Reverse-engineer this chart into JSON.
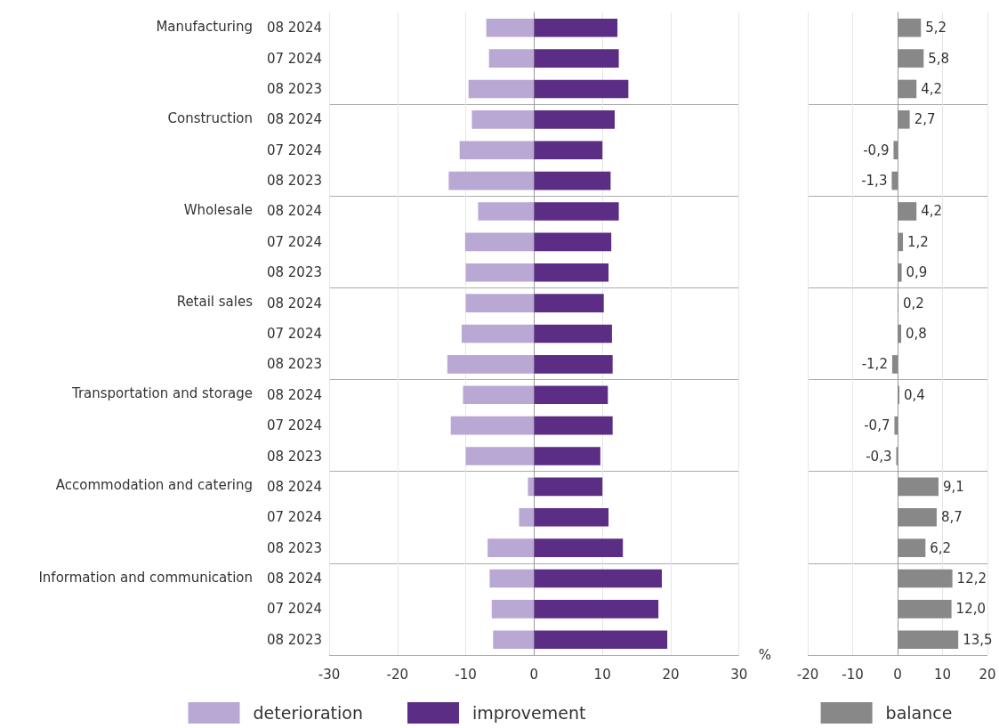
{
  "chart_data": [
    {
      "type": "bar",
      "orientation": "horizontal",
      "stacked": true,
      "categories": [
        "08 2024",
        "07 2024",
        "08 2023",
        "08 2024",
        "07 2024",
        "08 2023",
        "08 2024",
        "07 2024",
        "08 2023",
        "08 2024",
        "07 2024",
        "08 2023",
        "08 2024",
        "07 2024",
        "08 2023",
        "08 2024",
        "07 2024",
        "08 2023",
        "08 2024",
        "07 2024",
        "08 2023"
      ],
      "series": [
        {
          "name": "deterioration",
          "color": "#b9a8d4",
          "values": [
            -7.0,
            -6.6,
            -9.6,
            -9.1,
            -10.9,
            -12.5,
            -8.2,
            -10.1,
            -10.0,
            -10.0,
            -10.6,
            -12.7,
            -10.4,
            -12.2,
            -10.0,
            -0.9,
            -2.2,
            -6.8,
            -6.5,
            -6.2,
            -6.0
          ]
        },
        {
          "name": "improvement",
          "color": "#5b2d84",
          "values": [
            12.2,
            12.4,
            13.8,
            11.8,
            10.0,
            11.2,
            12.4,
            11.3,
            10.9,
            10.2,
            11.4,
            11.5,
            10.8,
            11.5,
            9.7,
            10.0,
            10.9,
            13.0,
            18.7,
            18.2,
            19.5
          ]
        }
      ],
      "annotations": [
        "Manufacturing",
        "Construction",
        "Wholesale",
        "Retail sales",
        "Transportation and storage",
        "Accommodation and catering",
        "Information and communication"
      ],
      "xlabel": "%",
      "xlim": [
        -30,
        30
      ],
      "xticks": [
        -30,
        -20,
        -10,
        0,
        10,
        20,
        30
      ],
      "grid": "x",
      "legend": "bottom"
    },
    {
      "type": "bar",
      "orientation": "horizontal",
      "categories": [
        null,
        null,
        null,
        null,
        null,
        null,
        null,
        null,
        null,
        null,
        null,
        null,
        null,
        null,
        null,
        null,
        null,
        null,
        null,
        null,
        null
      ],
      "series": [
        {
          "name": "balance",
          "color": "#888888",
          "values": [
            5.2,
            5.8,
            4.2,
            2.7,
            -0.9,
            -1.3,
            4.2,
            1.2,
            0.9,
            0.2,
            0.8,
            -1.2,
            0.4,
            -0.7,
            -0.3,
            9.1,
            8.7,
            6.2,
            12.2,
            12.0,
            13.5
          ],
          "value_labels": [
            "5,2",
            "5,8",
            "4,2",
            "2,7",
            "-0,9",
            "-1,3",
            "4,2",
            "1,2",
            "0,9",
            "0,2",
            "0,8",
            "-1,2",
            "0,4",
            "-0,7",
            "-0,3",
            "9,1",
            "8,7",
            "6,2",
            "12,2",
            "12,0",
            "13,5"
          ]
        }
      ],
      "xlim": [
        -20,
        20
      ],
      "xticks": [
        -20,
        -10,
        0,
        10,
        20
      ],
      "grid": "x",
      "legend": "bottom"
    }
  ]
}
